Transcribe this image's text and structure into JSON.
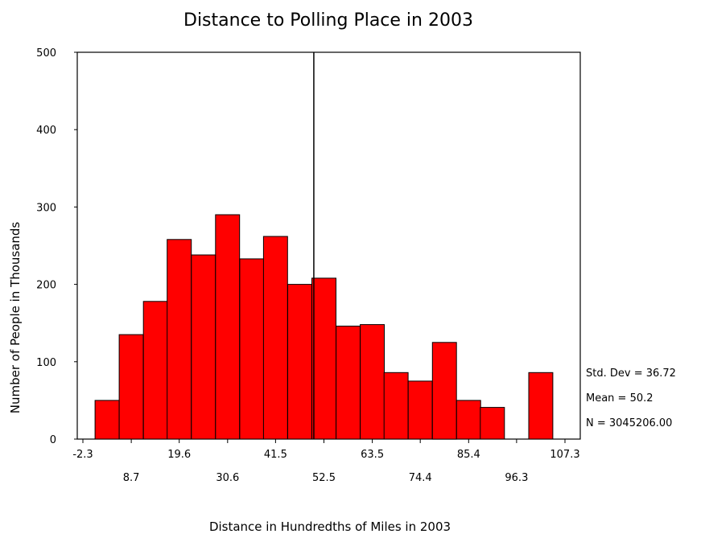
{
  "chart_data": {
    "type": "bar",
    "title": "Distance to Polling Place in 2003",
    "xlabel": "Distance in Hundredths of Miles in 2003",
    "ylabel": "Number of People in Thousands",
    "ylim": [
      0,
      500
    ],
    "yticks": [
      "0",
      "100",
      "200",
      "300",
      "400",
      "500"
    ],
    "xlim": [
      -2.3,
      107.3
    ],
    "xticks_upper": [
      "-2.3",
      "19.6",
      "41.5",
      "63.5",
      "85.4",
      "107.3"
    ],
    "xticks_lower": [
      "8.7",
      "30.6",
      "52.5",
      "74.4",
      "96.3"
    ],
    "bin_width": 5.48,
    "bar_color": "#ff0000",
    "bins": [
      {
        "center": 3.2,
        "value": 50
      },
      {
        "center": 8.7,
        "value": 135
      },
      {
        "center": 14.2,
        "value": 178
      },
      {
        "center": 19.6,
        "value": 258
      },
      {
        "center": 25.1,
        "value": 238
      },
      {
        "center": 30.6,
        "value": 290
      },
      {
        "center": 36.1,
        "value": 233
      },
      {
        "center": 41.5,
        "value": 262
      },
      {
        "center": 47.0,
        "value": 200
      },
      {
        "center": 52.5,
        "value": 208
      },
      {
        "center": 58.0,
        "value": 146
      },
      {
        "center": 63.5,
        "value": 148
      },
      {
        "center": 68.9,
        "value": 86
      },
      {
        "center": 74.4,
        "value": 75
      },
      {
        "center": 79.9,
        "value": 125
      },
      {
        "center": 85.4,
        "value": 50
      },
      {
        "center": 90.8,
        "value": 41
      },
      {
        "center": 101.8,
        "value": 86
      }
    ],
    "mean_line": 50.2,
    "stats": [
      "Std. Dev = 36.72",
      "Mean = 50.2",
      "N = 3045206.00"
    ],
    "grid": false,
    "legend": "none"
  }
}
